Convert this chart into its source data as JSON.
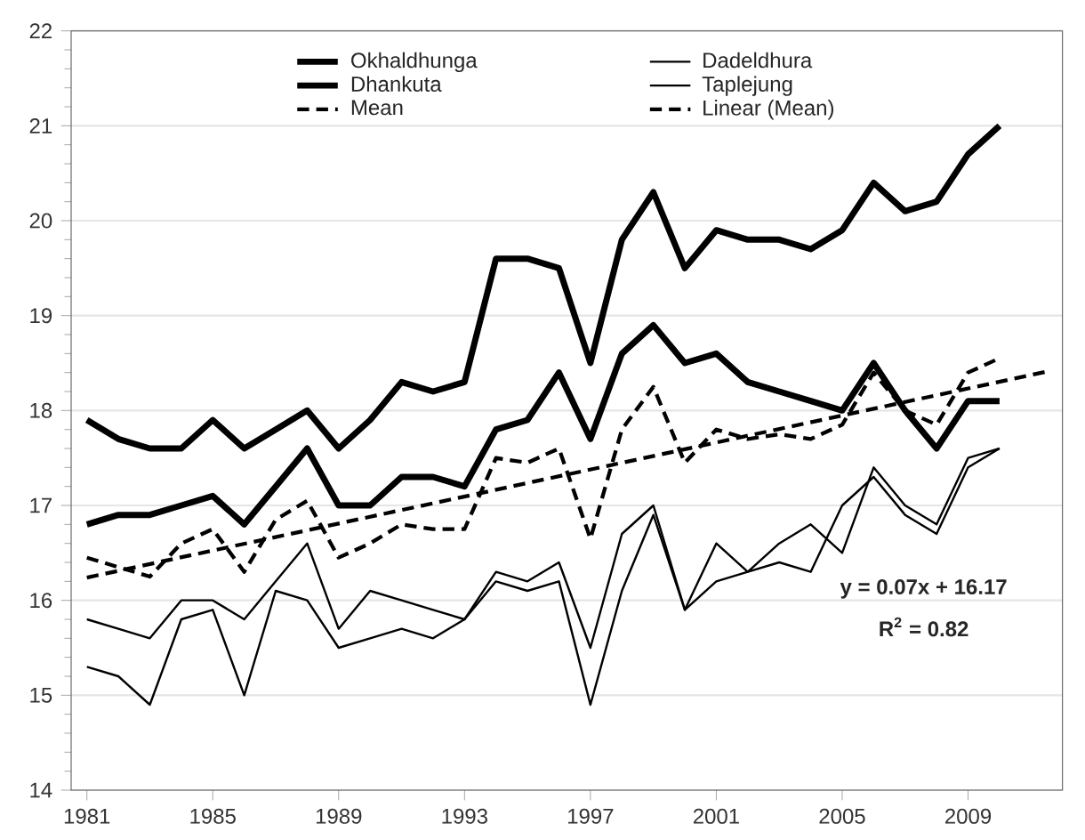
{
  "chart_data": {
    "type": "line",
    "x": [
      1981,
      1982,
      1983,
      1984,
      1985,
      1986,
      1987,
      1988,
      1989,
      1990,
      1991,
      1992,
      1993,
      1994,
      1995,
      1996,
      1997,
      1998,
      1999,
      2000,
      2001,
      2002,
      2003,
      2004,
      2005,
      2006,
      2007,
      2008,
      2009,
      2010
    ],
    "series": [
      {
        "name": "Okhaldhunga",
        "color": "#000000",
        "line_style": "solid",
        "values": [
          17.9,
          17.7,
          17.6,
          17.6,
          17.9,
          17.6,
          17.8,
          18.0,
          17.6,
          17.9,
          18.3,
          18.2,
          18.3,
          19.6,
          19.6,
          19.5,
          18.5,
          19.8,
          20.3,
          19.5,
          19.9,
          19.8,
          19.8,
          19.7,
          19.9,
          20.4,
          20.1,
          20.2,
          20.7,
          21.0
        ]
      },
      {
        "name": "Dadeldhura",
        "color": "#000000",
        "line_style": "solid",
        "values": [
          15.8,
          15.7,
          15.6,
          16.0,
          16.0,
          15.8,
          16.2,
          16.6,
          15.7,
          16.1,
          16.0,
          15.9,
          15.8,
          16.3,
          16.2,
          16.4,
          15.5,
          16.7,
          17.0,
          15.9,
          16.6,
          16.3,
          16.6,
          16.8,
          16.5,
          17.4,
          17.0,
          16.8,
          17.5,
          17.6
        ]
      },
      {
        "name": "Dhankuta",
        "color": "#000000",
        "line_style": "solid",
        "values": [
          16.8,
          16.9,
          16.9,
          17.0,
          17.1,
          16.8,
          17.2,
          17.6,
          17.0,
          17.0,
          17.3,
          17.3,
          17.2,
          17.8,
          17.9,
          18.4,
          17.7,
          18.6,
          18.9,
          18.5,
          18.6,
          18.3,
          18.2,
          18.1,
          18.0,
          18.5,
          18.0,
          17.6,
          18.1,
          18.1
        ]
      },
      {
        "name": "Taplejung",
        "color": "#000000",
        "line_style": "solid",
        "values": [
          15.3,
          15.2,
          14.9,
          15.8,
          15.9,
          15.0,
          16.1,
          16.0,
          15.5,
          15.6,
          15.7,
          15.6,
          15.8,
          16.2,
          16.1,
          16.2,
          14.9,
          16.1,
          16.9,
          15.9,
          16.2,
          16.3,
          16.4,
          16.3,
          17.0,
          17.3,
          16.9,
          16.7,
          17.4,
          17.6
        ]
      },
      {
        "name": "Mean",
        "color": "#000000",
        "line_style": "dashed",
        "values": [
          16.45,
          16.35,
          16.25,
          16.6,
          16.75,
          16.3,
          16.85,
          17.05,
          16.45,
          16.6,
          16.8,
          16.75,
          16.75,
          17.5,
          17.45,
          17.6,
          16.65,
          17.8,
          18.25,
          17.45,
          17.8,
          17.7,
          17.75,
          17.7,
          17.85,
          18.4,
          18.0,
          17.85,
          18.4,
          18.55
        ]
      },
      {
        "name": "Linear (Mean)",
        "color": "#000000",
        "line_style": "dashed",
        "x": [
          1981,
          2011.5
        ],
        "values": [
          16.24,
          18.41
        ]
      }
    ],
    "xlim": [
      1980.5,
      2012
    ],
    "xticks": [
      1981,
      1985,
      1989,
      1993,
      1997,
      2001,
      2005,
      2009
    ],
    "ylim": [
      14,
      22
    ],
    "yticks": [
      14,
      15,
      16,
      17,
      18,
      19,
      20,
      21,
      22
    ],
    "grid": "y",
    "legend": "top",
    "annotations": [
      "y = 0.07x + 16.17",
      "R$^{2}$ = 0.82"
    ]
  }
}
